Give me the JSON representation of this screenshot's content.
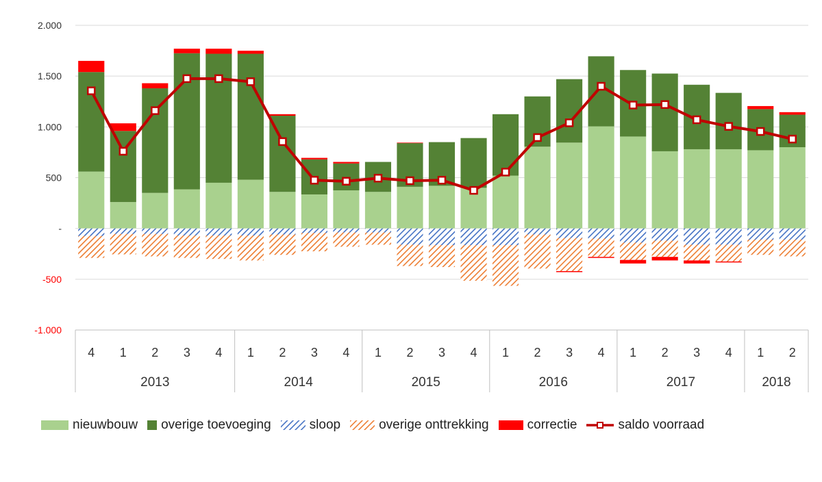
{
  "chart_data": {
    "type": "bar",
    "subtype": "stacked bar with line overlay",
    "categories": [
      "4",
      "1",
      "2",
      "3",
      "4",
      "1",
      "2",
      "3",
      "4",
      "1",
      "2",
      "3",
      "4",
      "1",
      "2",
      "3",
      "4",
      "1",
      "2",
      "3",
      "4",
      "1",
      "2"
    ],
    "quarters": [
      "4",
      "1",
      "2",
      "3",
      "4",
      "1",
      "2",
      "3",
      "4",
      "1",
      "2",
      "3",
      "4",
      "1",
      "2",
      "3",
      "4",
      "1",
      "2",
      "3",
      "4",
      "1",
      "2"
    ],
    "year_groups": [
      {
        "label": "2013",
        "count": 5
      },
      {
        "label": "2014",
        "count": 4
      },
      {
        "label": "2015",
        "count": 4
      },
      {
        "label": "2016",
        "count": 4
      },
      {
        "label": "2017",
        "count": 4
      },
      {
        "label": "2018",
        "count": 2
      }
    ],
    "y_axis": {
      "min": -1000,
      "max": 2000,
      "ticks": [
        {
          "value": 2000,
          "label": "2.000"
        },
        {
          "value": 1500,
          "label": "1.500"
        },
        {
          "value": 1000,
          "label": "1.000"
        },
        {
          "value": 500,
          "label": "500"
        },
        {
          "value": 0,
          "label": "-"
        },
        {
          "value": -500,
          "label": "-500"
        },
        {
          "value": -1000,
          "label": "-1.000"
        }
      ]
    },
    "grid": true,
    "legend_position": "bottom",
    "series": [
      {
        "name": "nieuwbouw",
        "type": "bar",
        "color": "#a9d18e",
        "pattern": "solid",
        "values": [
          560,
          260,
          350,
          385,
          450,
          480,
          360,
          335,
          375,
          360,
          410,
          420,
          400,
          520,
          805,
          845,
          1005,
          905,
          760,
          780,
          780,
          770,
          800
        ]
      },
      {
        "name": "overige toevoeging",
        "type": "bar",
        "color": "#548235",
        "pattern": "solid",
        "values": [
          980,
          700,
          1030,
          1340,
          1270,
          1240,
          750,
          345,
          265,
          295,
          430,
          430,
          490,
          605,
          495,
          625,
          690,
          655,
          765,
          635,
          555,
          405,
          320
        ]
      },
      {
        "name": "sloop",
        "type": "bar",
        "color": "#4472c4",
        "pattern": "diag-blue",
        "values": [
          -75,
          -55,
          -55,
          -70,
          -70,
          -70,
          -60,
          -45,
          -40,
          -40,
          -160,
          -165,
          -165,
          -165,
          -60,
          -95,
          -100,
          -140,
          -120,
          -160,
          -160,
          -110,
          -110
        ]
      },
      {
        "name": "overige onttrekking",
        "type": "bar",
        "color": "#ed7d31",
        "pattern": "diag-orange",
        "values": [
          -215,
          -200,
          -220,
          -220,
          -230,
          -245,
          -200,
          -180,
          -140,
          -120,
          -210,
          -215,
          -350,
          -400,
          -335,
          -325,
          -180,
          -170,
          -160,
          -155,
          -165,
          -150,
          -165
        ]
      },
      {
        "name": "correctie",
        "type": "bar",
        "color": "#ff0000",
        "pattern": "solid",
        "values": [
          110,
          75,
          50,
          45,
          50,
          30,
          15,
          15,
          15,
          0,
          5,
          0,
          0,
          0,
          0,
          -10,
          -10,
          -35,
          -35,
          -30,
          -10,
          30,
          25
        ]
      },
      {
        "name": "saldo voorraad",
        "type": "line",
        "color": "#c00000",
        "values": [
          1355,
          760,
          1160,
          1475,
          1475,
          1445,
          855,
          475,
          465,
          495,
          470,
          475,
          375,
          555,
          895,
          1040,
          1400,
          1215,
          1220,
          1070,
          1005,
          955,
          880
        ]
      }
    ]
  }
}
